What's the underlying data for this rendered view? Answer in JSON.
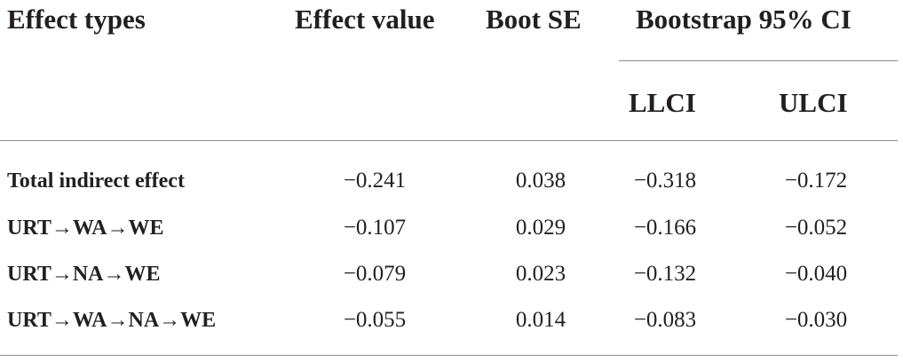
{
  "table": {
    "headers": {
      "effect_types": "Effect types",
      "effect_value": "Effect value",
      "boot_se": "Boot SE",
      "ci_group": "Bootstrap 95% CI",
      "llci": "LLCI",
      "ulci": "ULCI"
    },
    "rows": [
      {
        "label": "Total indirect effect",
        "effect": "−0.241",
        "se": "0.038",
        "llci": "−0.318",
        "ulci": "−0.172"
      },
      {
        "label": "URT→WA→WE",
        "effect": "−0.107",
        "se": "0.029",
        "llci": "−0.166",
        "ulci": "−0.052"
      },
      {
        "label": "URT→NA→WE",
        "effect": "−0.079",
        "se": "0.023",
        "llci": "−0.132",
        "ulci": "−0.040"
      },
      {
        "label": "URT→WA→NA→WE",
        "effect": "−0.055",
        "se": "0.014",
        "llci": "−0.083",
        "ulci": "−0.030"
      }
    ]
  }
}
